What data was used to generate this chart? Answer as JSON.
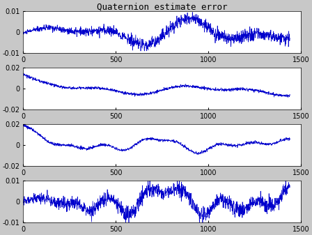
{
  "title": "Quaternion estimate error",
  "xlim": [
    0,
    1500
  ],
  "n_points": 1440,
  "line_color": "#0000CC",
  "line_width": 0.5,
  "background_color": "#c8c8c8",
  "axes_background": "#ffffff",
  "subplots": [
    {
      "ylim": [
        -0.01,
        0.01
      ],
      "yticks": [
        -0.01,
        0,
        0.01
      ]
    },
    {
      "ylim": [
        -0.02,
        0.02
      ],
      "yticks": [
        -0.02,
        0,
        0.02
      ]
    },
    {
      "ylim": [
        -0.02,
        0.02
      ],
      "yticks": [
        -0.02,
        0,
        0.02
      ]
    },
    {
      "ylim": [
        -0.01,
        0.01
      ],
      "yticks": [
        -0.01,
        0,
        0.01
      ]
    }
  ],
  "xticks": [
    0,
    500,
    1000,
    1500
  ],
  "title_fontsize": 9,
  "tick_fontsize": 7,
  "figsize": [
    4.48,
    3.37
  ],
  "dpi": 100
}
